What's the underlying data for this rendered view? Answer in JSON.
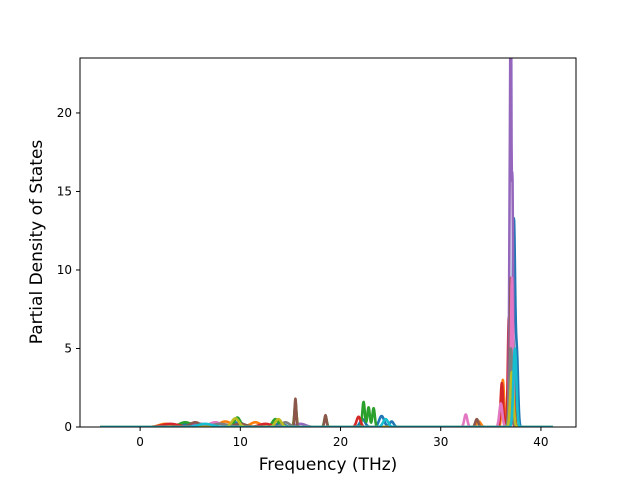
{
  "chart_data": {
    "type": "line",
    "title": "",
    "xlabel": "Frequency (THz)",
    "ylabel": "Partial Density of States",
    "xlim": [
      -6,
      43.5
    ],
    "ylim": [
      0,
      23.5
    ],
    "xticks": [
      0,
      10,
      20,
      30,
      40
    ],
    "yticks": [
      0,
      5,
      10,
      15,
      20
    ],
    "grid": false,
    "legend": "none",
    "series": [
      {
        "color": "#1f77b4",
        "peaks": [
          [
            5.0,
            0.22,
            0.9
          ],
          [
            9.8,
            0.3,
            0.5
          ],
          [
            14.0,
            0.25,
            0.4
          ],
          [
            22.2,
            0.5,
            0.25
          ],
          [
            24.1,
            0.7,
            0.25
          ],
          [
            25.1,
            0.35,
            0.2
          ],
          [
            36.9,
            7.0,
            0.14
          ],
          [
            37.3,
            13.0,
            0.12
          ],
          [
            37.6,
            4.5,
            0.12
          ]
        ]
      },
      {
        "color": "#ff7f0e",
        "peaks": [
          [
            2.5,
            0.2,
            0.6
          ],
          [
            8.5,
            0.35,
            0.6
          ],
          [
            11.5,
            0.3,
            0.5
          ],
          [
            15.5,
            1.2,
            0.12
          ],
          [
            33.8,
            0.35,
            0.2
          ],
          [
            36.2,
            3.0,
            0.12
          ],
          [
            37.0,
            8.5,
            0.1
          ]
        ]
      },
      {
        "color": "#2ca02c",
        "peaks": [
          [
            4.5,
            0.3,
            0.6
          ],
          [
            9.7,
            0.6,
            0.3
          ],
          [
            13.5,
            0.5,
            0.3
          ],
          [
            15.5,
            1.6,
            0.1
          ],
          [
            18.5,
            0.7,
            0.12
          ],
          [
            22.3,
            1.6,
            0.12
          ],
          [
            22.8,
            1.25,
            0.12
          ],
          [
            23.3,
            1.2,
            0.12
          ],
          [
            37.2,
            6.0,
            0.12
          ]
        ]
      },
      {
        "color": "#d62728",
        "peaks": [
          [
            3.0,
            0.2,
            0.8
          ],
          [
            12.5,
            0.2,
            0.6
          ],
          [
            21.8,
            0.65,
            0.2
          ],
          [
            36.1,
            2.8,
            0.12
          ],
          [
            36.8,
            7.0,
            0.1
          ],
          [
            37.2,
            4.0,
            0.12
          ]
        ]
      },
      {
        "color": "#9467bd",
        "peaks": [
          [
            6.0,
            0.2,
            0.8
          ],
          [
            16.0,
            0.2,
            0.5
          ],
          [
            36.9,
            15.0,
            0.07
          ],
          [
            37.0,
            22.5,
            0.05
          ],
          [
            37.15,
            16.0,
            0.07
          ]
        ]
      },
      {
        "color": "#8c564b",
        "peaks": [
          [
            5.5,
            0.3,
            0.5
          ],
          [
            10.0,
            0.2,
            0.6
          ],
          [
            15.5,
            1.8,
            0.08
          ],
          [
            18.5,
            0.75,
            0.1
          ],
          [
            33.6,
            0.5,
            0.15
          ],
          [
            37.0,
            9.5,
            0.1
          ]
        ]
      },
      {
        "color": "#e377c2",
        "peaks": [
          [
            7.5,
            0.3,
            0.6
          ],
          [
            32.5,
            0.8,
            0.15
          ],
          [
            36.0,
            1.5,
            0.15
          ],
          [
            37.1,
            9.5,
            0.1
          ]
        ]
      },
      {
        "color": "#7f7f7f",
        "peaks": [
          [
            8.0,
            0.2,
            0.8
          ],
          [
            14.5,
            0.3,
            0.4
          ],
          [
            37.0,
            5.0,
            0.15
          ]
        ]
      },
      {
        "color": "#bcbd22",
        "peaks": [
          [
            9.5,
            0.55,
            0.35
          ],
          [
            13.8,
            0.5,
            0.3
          ],
          [
            37.1,
            3.5,
            0.15
          ]
        ]
      },
      {
        "color": "#17becf",
        "peaks": [
          [
            6.5,
            0.2,
            0.7
          ],
          [
            24.5,
            0.5,
            0.25
          ],
          [
            37.4,
            5.0,
            0.15
          ]
        ]
      }
    ],
    "x_range": [
      -4,
      41.2
    ]
  }
}
